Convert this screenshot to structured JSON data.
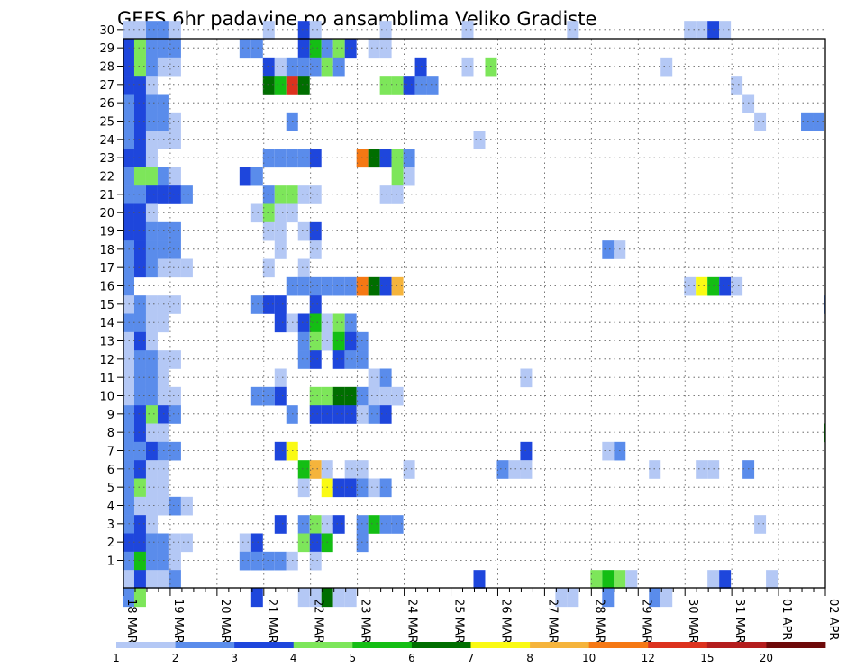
{
  "chart_data": {
    "type": "heatmap",
    "title": "GEFS 6hr padavine po ansamblima Veliko Gradiste",
    "xlabel": "",
    "ylabel": "",
    "x_tick_labels": [
      "18 MAR",
      "19 MAR",
      "20 MAR",
      "21 MAR",
      "22 MAR",
      "23 MAR",
      "24 MAR",
      "25 MAR",
      "26 MAR",
      "27 MAR",
      "28 MAR",
      "29 MAR",
      "30 MAR",
      "31 MAR",
      "01 APR",
      "02 APR"
    ],
    "x_ticks_per_day": 4,
    "y_tick_labels": [
      1,
      2,
      3,
      4,
      5,
      6,
      7,
      8,
      9,
      10,
      11,
      12,
      13,
      14,
      15,
      16,
      17,
      18,
      19,
      20,
      21,
      22,
      23,
      24,
      25,
      26,
      27,
      28,
      29,
      30
    ],
    "ylim": [
      0,
      30
    ],
    "grid": true,
    "colorbar": {
      "bounds": [
        1,
        2,
        3,
        4,
        5,
        6,
        7,
        8,
        10,
        12,
        15,
        20
      ],
      "labels": [
        "1",
        "2",
        "3",
        "4",
        "5",
        "6",
        "7",
        "8",
        "10",
        "12",
        "15",
        "20"
      ],
      "colors": [
        "#b4c8f5",
        "#5a8ceb",
        "#1e46dc",
        "#7de65a",
        "#14be14",
        "#006e00",
        "#fafa14",
        "#f5b43c",
        "#f57814",
        "#dc321e",
        "#b41e1e",
        "#6e0a0a"
      ]
    },
    "cells_note": "each cell is [ensemble_member_row, time_step_index, color_level]; time_step_index counts 6-hour steps from 18 MAR 00Z; color_level indexes colorbar.colors",
    "cells": [
      [
        30,
        0,
        0
      ],
      [
        30,
        1,
        0
      ],
      [
        30,
        2,
        1
      ],
      [
        30,
        3,
        1
      ],
      [
        30,
        4,
        0
      ],
      [
        30,
        12,
        0
      ],
      [
        30,
        15,
        2
      ],
      [
        30,
        16,
        0
      ],
      [
        30,
        22,
        0
      ],
      [
        30,
        29,
        0
      ],
      [
        30,
        38,
        0
      ],
      [
        30,
        48,
        0
      ],
      [
        30,
        49,
        0
      ],
      [
        30,
        50,
        2
      ],
      [
        30,
        51,
        0
      ],
      [
        29,
        0,
        2
      ],
      [
        29,
        1,
        3
      ],
      [
        29,
        2,
        1
      ],
      [
        29,
        3,
        1
      ],
      [
        29,
        4,
        1
      ],
      [
        29,
        10,
        1
      ],
      [
        29,
        11,
        1
      ],
      [
        29,
        15,
        2
      ],
      [
        29,
        16,
        4
      ],
      [
        29,
        17,
        1
      ],
      [
        29,
        18,
        3
      ],
      [
        29,
        19,
        2
      ],
      [
        29,
        21,
        0
      ],
      [
        29,
        22,
        0
      ],
      [
        28,
        0,
        2
      ],
      [
        28,
        1,
        3
      ],
      [
        28,
        2,
        1
      ],
      [
        28,
        3,
        0
      ],
      [
        28,
        4,
        0
      ],
      [
        28,
        12,
        2
      ],
      [
        28,
        13,
        0
      ],
      [
        28,
        14,
        1
      ],
      [
        28,
        15,
        1
      ],
      [
        28,
        16,
        1
      ],
      [
        28,
        17,
        3
      ],
      [
        28,
        18,
        1
      ],
      [
        28,
        25,
        2
      ],
      [
        28,
        29,
        0
      ],
      [
        28,
        31,
        3
      ],
      [
        28,
        46,
        0
      ],
      [
        27,
        0,
        2
      ],
      [
        27,
        1,
        2
      ],
      [
        27,
        2,
        0
      ],
      [
        27,
        12,
        5
      ],
      [
        27,
        13,
        4
      ],
      [
        27,
        14,
        9
      ],
      [
        27,
        15,
        5
      ],
      [
        27,
        22,
        3
      ],
      [
        27,
        23,
        3
      ],
      [
        27,
        24,
        2
      ],
      [
        27,
        25,
        1
      ],
      [
        27,
        26,
        1
      ],
      [
        27,
        52,
        0
      ],
      [
        26,
        0,
        1
      ],
      [
        26,
        1,
        2
      ],
      [
        26,
        2,
        1
      ],
      [
        26,
        3,
        1
      ],
      [
        26,
        53,
        0
      ],
      [
        25,
        0,
        1
      ],
      [
        25,
        1,
        2
      ],
      [
        25,
        2,
        1
      ],
      [
        25,
        3,
        1
      ],
      [
        25,
        4,
        0
      ],
      [
        25,
        14,
        1
      ],
      [
        25,
        54,
        0
      ],
      [
        25,
        58,
        1
      ],
      [
        25,
        59,
        1
      ],
      [
        24,
        0,
        1
      ],
      [
        24,
        1,
        2
      ],
      [
        24,
        2,
        0
      ],
      [
        24,
        3,
        0
      ],
      [
        24,
        4,
        0
      ],
      [
        24,
        30,
        0
      ],
      [
        23,
        0,
        2
      ],
      [
        23,
        1,
        2
      ],
      [
        23,
        2,
        0
      ],
      [
        23,
        12,
        1
      ],
      [
        23,
        13,
        1
      ],
      [
        23,
        14,
        1
      ],
      [
        23,
        15,
        1
      ],
      [
        23,
        16,
        2
      ],
      [
        23,
        20,
        8
      ],
      [
        23,
        21,
        5
      ],
      [
        23,
        22,
        2
      ],
      [
        23,
        23,
        3
      ],
      [
        23,
        24,
        1
      ],
      [
        22,
        0,
        1
      ],
      [
        22,
        1,
        3
      ],
      [
        22,
        2,
        3
      ],
      [
        22,
        3,
        1
      ],
      [
        22,
        4,
        0
      ],
      [
        22,
        10,
        2
      ],
      [
        22,
        11,
        1
      ],
      [
        22,
        23,
        3
      ],
      [
        22,
        24,
        0
      ],
      [
        21,
        0,
        1
      ],
      [
        21,
        1,
        1
      ],
      [
        21,
        2,
        2
      ],
      [
        21,
        3,
        2
      ],
      [
        21,
        4,
        2
      ],
      [
        21,
        5,
        1
      ],
      [
        21,
        12,
        1
      ],
      [
        21,
        13,
        3
      ],
      [
        21,
        14,
        3
      ],
      [
        21,
        15,
        0
      ],
      [
        21,
        16,
        0
      ],
      [
        21,
        22,
        0
      ],
      [
        21,
        23,
        0
      ],
      [
        20,
        0,
        2
      ],
      [
        20,
        1,
        2
      ],
      [
        20,
        2,
        0
      ],
      [
        20,
        11,
        0
      ],
      [
        20,
        12,
        3
      ],
      [
        20,
        13,
        0
      ],
      [
        20,
        14,
        0
      ],
      [
        19,
        0,
        2
      ],
      [
        19,
        1,
        2
      ],
      [
        19,
        2,
        1
      ],
      [
        19,
        3,
        1
      ],
      [
        19,
        4,
        1
      ],
      [
        19,
        12,
        0
      ],
      [
        19,
        13,
        0
      ],
      [
        19,
        15,
        0
      ],
      [
        19,
        16,
        2
      ],
      [
        18,
        0,
        1
      ],
      [
        18,
        1,
        2
      ],
      [
        18,
        2,
        1
      ],
      [
        18,
        3,
        1
      ],
      [
        18,
        4,
        1
      ],
      [
        18,
        13,
        0
      ],
      [
        18,
        16,
        0
      ],
      [
        18,
        41,
        1
      ],
      [
        18,
        42,
        0
      ],
      [
        17,
        0,
        1
      ],
      [
        17,
        1,
        2
      ],
      [
        17,
        2,
        1
      ],
      [
        17,
        3,
        0
      ],
      [
        17,
        4,
        0
      ],
      [
        17,
        5,
        0
      ],
      [
        17,
        12,
        0
      ],
      [
        17,
        15,
        0
      ],
      [
        16,
        0,
        1
      ],
      [
        16,
        14,
        1
      ],
      [
        16,
        15,
        1
      ],
      [
        16,
        16,
        1
      ],
      [
        16,
        17,
        1
      ],
      [
        16,
        18,
        1
      ],
      [
        16,
        19,
        1
      ],
      [
        16,
        20,
        8
      ],
      [
        16,
        21,
        5
      ],
      [
        16,
        22,
        2
      ],
      [
        16,
        23,
        7
      ],
      [
        16,
        48,
        0
      ],
      [
        16,
        49,
        6
      ],
      [
        16,
        50,
        4
      ],
      [
        16,
        51,
        2
      ],
      [
        16,
        52,
        0
      ],
      [
        15,
        0,
        0
      ],
      [
        15,
        1,
        1
      ],
      [
        15,
        2,
        0
      ],
      [
        15,
        3,
        0
      ],
      [
        15,
        4,
        0
      ],
      [
        15,
        11,
        1
      ],
      [
        15,
        12,
        2
      ],
      [
        15,
        13,
        2
      ],
      [
        15,
        16,
        2
      ],
      [
        15,
        60,
        1
      ],
      [
        14,
        0,
        1
      ],
      [
        14,
        1,
        1
      ],
      [
        14,
        2,
        0
      ],
      [
        14,
        3,
        0
      ],
      [
        14,
        13,
        2
      ],
      [
        14,
        14,
        0
      ],
      [
        14,
        15,
        2
      ],
      [
        14,
        16,
        4
      ],
      [
        14,
        17,
        0
      ],
      [
        14,
        18,
        3
      ],
      [
        14,
        19,
        1
      ],
      [
        13,
        0,
        0
      ],
      [
        13,
        1,
        2
      ],
      [
        13,
        2,
        0
      ],
      [
        13,
        15,
        1
      ],
      [
        13,
        16,
        3
      ],
      [
        13,
        17,
        0
      ],
      [
        13,
        18,
        4
      ],
      [
        13,
        19,
        2
      ],
      [
        13,
        20,
        1
      ],
      [
        12,
        0,
        0
      ],
      [
        12,
        1,
        1
      ],
      [
        12,
        2,
        1
      ],
      [
        12,
        3,
        0
      ],
      [
        12,
        4,
        0
      ],
      [
        12,
        15,
        1
      ],
      [
        12,
        16,
        2
      ],
      [
        12,
        18,
        2
      ],
      [
        12,
        19,
        1
      ],
      [
        12,
        20,
        1
      ],
      [
        11,
        0,
        0
      ],
      [
        11,
        1,
        1
      ],
      [
        11,
        2,
        1
      ],
      [
        11,
        3,
        0
      ],
      [
        11,
        13,
        0
      ],
      [
        11,
        21,
        0
      ],
      [
        11,
        22,
        1
      ],
      [
        11,
        34,
        0
      ],
      [
        10,
        0,
        0
      ],
      [
        10,
        1,
        1
      ],
      [
        10,
        2,
        1
      ],
      [
        10,
        3,
        0
      ],
      [
        10,
        4,
        0
      ],
      [
        10,
        11,
        1
      ],
      [
        10,
        12,
        1
      ],
      [
        10,
        13,
        2
      ],
      [
        10,
        16,
        3
      ],
      [
        10,
        17,
        3
      ],
      [
        10,
        18,
        5
      ],
      [
        10,
        19,
        5
      ],
      [
        10,
        20,
        1
      ],
      [
        10,
        21,
        0
      ],
      [
        10,
        22,
        0
      ],
      [
        10,
        23,
        0
      ],
      [
        9,
        0,
        1
      ],
      [
        9,
        1,
        2
      ],
      [
        9,
        2,
        3
      ],
      [
        9,
        3,
        2
      ],
      [
        9,
        4,
        1
      ],
      [
        9,
        14,
        1
      ],
      [
        9,
        16,
        2
      ],
      [
        9,
        17,
        2
      ],
      [
        9,
        18,
        2
      ],
      [
        9,
        19,
        2
      ],
      [
        9,
        20,
        0
      ],
      [
        9,
        21,
        1
      ],
      [
        9,
        22,
        2
      ],
      [
        8,
        0,
        1
      ],
      [
        8,
        1,
        2
      ],
      [
        8,
        2,
        0
      ],
      [
        8,
        3,
        0
      ],
      [
        8,
        60,
        4
      ],
      [
        7,
        0,
        1
      ],
      [
        7,
        1,
        1
      ],
      [
        7,
        2,
        2
      ],
      [
        7,
        3,
        1
      ],
      [
        7,
        4,
        1
      ],
      [
        7,
        13,
        2
      ],
      [
        7,
        14,
        6
      ],
      [
        7,
        34,
        2
      ],
      [
        7,
        41,
        0
      ],
      [
        7,
        42,
        1
      ],
      [
        6,
        0,
        1
      ],
      [
        6,
        1,
        2
      ],
      [
        6,
        2,
        0
      ],
      [
        6,
        3,
        0
      ],
      [
        6,
        15,
        4
      ],
      [
        6,
        16,
        7
      ],
      [
        6,
        17,
        0
      ],
      [
        6,
        19,
        0
      ],
      [
        6,
        20,
        0
      ],
      [
        6,
        24,
        0
      ],
      [
        6,
        32,
        1
      ],
      [
        6,
        33,
        0
      ],
      [
        6,
        34,
        0
      ],
      [
        6,
        45,
        0
      ],
      [
        6,
        49,
        0
      ],
      [
        6,
        50,
        0
      ],
      [
        6,
        53,
        1
      ],
      [
        5,
        0,
        1
      ],
      [
        5,
        1,
        3
      ],
      [
        5,
        2,
        0
      ],
      [
        5,
        3,
        0
      ],
      [
        5,
        15,
        0
      ],
      [
        5,
        17,
        6
      ],
      [
        5,
        18,
        2
      ],
      [
        5,
        19,
        2
      ],
      [
        5,
        20,
        1
      ],
      [
        5,
        21,
        0
      ],
      [
        5,
        22,
        1
      ],
      [
        4,
        0,
        1
      ],
      [
        4,
        1,
        0
      ],
      [
        4,
        2,
        0
      ],
      [
        4,
        3,
        0
      ],
      [
        4,
        4,
        1
      ],
      [
        4,
        5,
        0
      ],
      [
        3,
        0,
        1
      ],
      [
        3,
        1,
        2
      ],
      [
        3,
        2,
        0
      ],
      [
        3,
        13,
        2
      ],
      [
        3,
        15,
        1
      ],
      [
        3,
        16,
        3
      ],
      [
        3,
        17,
        0
      ],
      [
        3,
        18,
        2
      ],
      [
        3,
        20,
        1
      ],
      [
        3,
        21,
        4
      ],
      [
        3,
        22,
        1
      ],
      [
        3,
        23,
        1
      ],
      [
        3,
        54,
        0
      ],
      [
        2,
        0,
        2
      ],
      [
        2,
        1,
        2
      ],
      [
        2,
        2,
        1
      ],
      [
        2,
        3,
        1
      ],
      [
        2,
        4,
        0
      ],
      [
        2,
        5,
        0
      ],
      [
        2,
        10,
        0
      ],
      [
        2,
        11,
        2
      ],
      [
        2,
        15,
        3
      ],
      [
        2,
        16,
        2
      ],
      [
        2,
        17,
        4
      ],
      [
        2,
        20,
        1
      ],
      [
        1,
        0,
        1
      ],
      [
        1,
        1,
        4
      ],
      [
        1,
        2,
        1
      ],
      [
        1,
        3,
        1
      ],
      [
        1,
        4,
        0
      ],
      [
        1,
        10,
        1
      ],
      [
        1,
        11,
        1
      ],
      [
        1,
        12,
        1
      ],
      [
        1,
        13,
        1
      ],
      [
        1,
        14,
        0
      ],
      [
        1,
        16,
        0
      ],
      [
        0,
        0,
        0
      ],
      [
        0,
        1,
        2
      ],
      [
        0,
        2,
        0
      ],
      [
        0,
        3,
        0
      ],
      [
        0,
        4,
        1
      ],
      [
        0,
        30,
        2
      ],
      [
        0,
        40,
        3
      ],
      [
        0,
        41,
        4
      ],
      [
        0,
        42,
        3
      ],
      [
        0,
        43,
        0
      ],
      [
        0,
        50,
        0
      ],
      [
        0,
        51,
        2
      ],
      [
        0,
        55,
        0
      ],
      [
        -1,
        0,
        1
      ],
      [
        -1,
        1,
        3
      ],
      [
        -1,
        11,
        2
      ],
      [
        -1,
        15,
        0
      ],
      [
        -1,
        16,
        0
      ],
      [
        -1,
        17,
        5
      ],
      [
        -1,
        18,
        0
      ],
      [
        -1,
        19,
        0
      ],
      [
        -1,
        37,
        0
      ],
      [
        -1,
        38,
        0
      ],
      [
        -1,
        41,
        1
      ],
      [
        -1,
        45,
        1
      ],
      [
        -1,
        46,
        0
      ]
    ]
  }
}
